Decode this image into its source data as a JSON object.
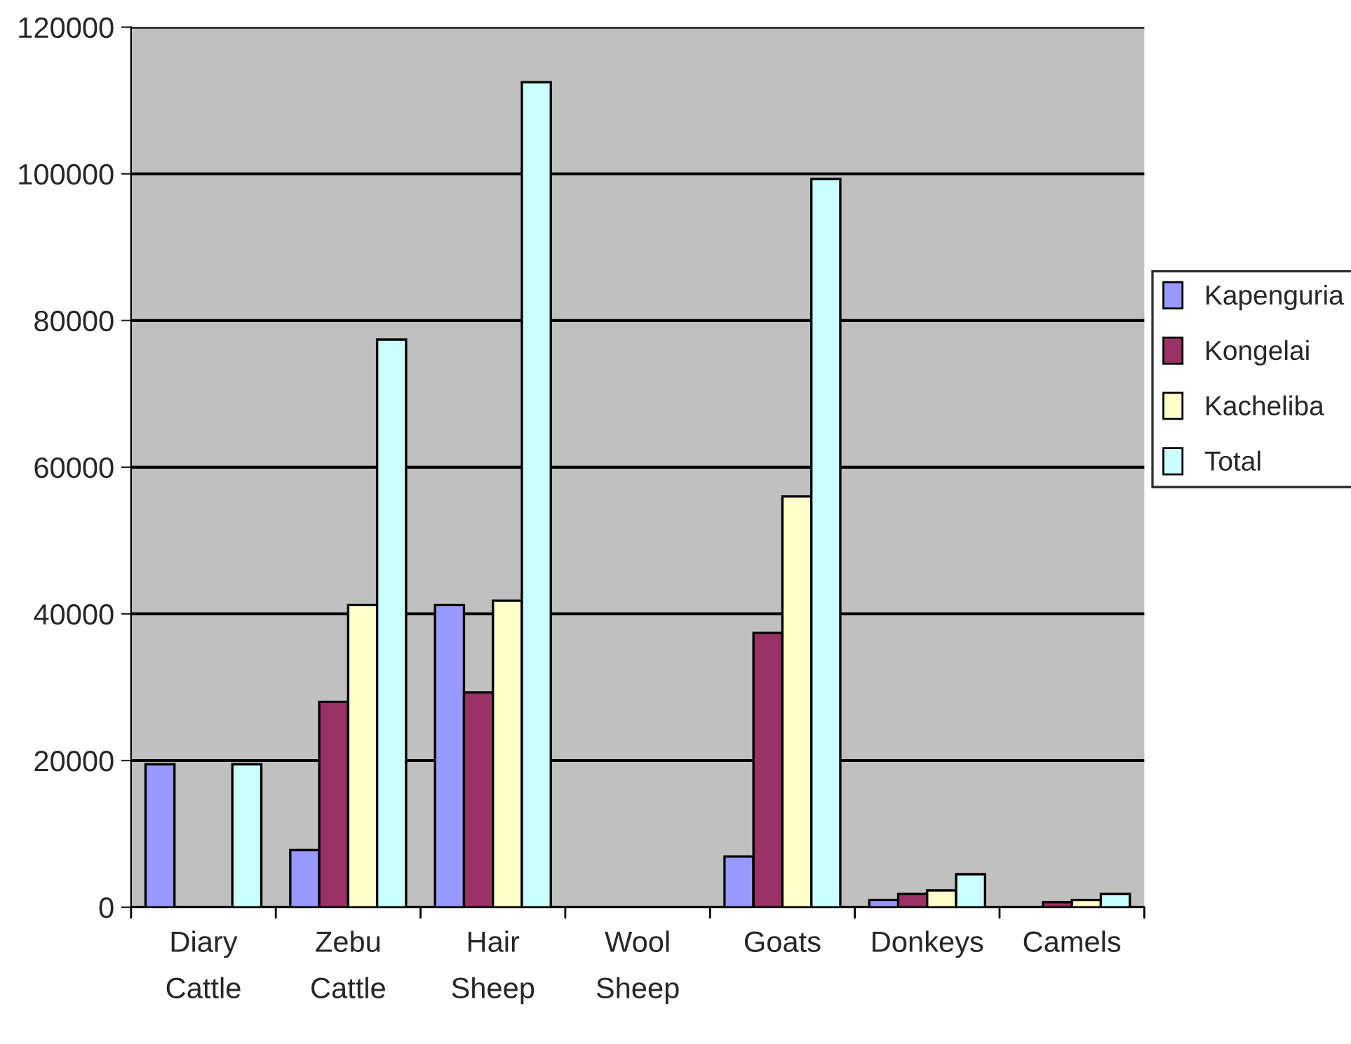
{
  "chart_data": {
    "type": "bar",
    "categories": [
      "Diary\nCattle",
      "Zebu\nCattle",
      "Hair\nSheep",
      "Wool\nSheep",
      "Goats",
      "Donkeys",
      "Camels"
    ],
    "series": [
      {
        "name": "Kapenguria",
        "color": "#9999ff",
        "values": [
          19500,
          7800,
          41200,
          null,
          6900,
          1000,
          null
        ]
      },
      {
        "name": "Kongelai",
        "color": "#993366",
        "values": [
          null,
          28000,
          29300,
          null,
          37400,
          1800,
          700
        ]
      },
      {
        "name": "Kacheliba",
        "color": "#ffffcc",
        "values": [
          null,
          41200,
          41800,
          null,
          56000,
          2300,
          1000
        ]
      },
      {
        "name": "Total",
        "color": "#ccffff",
        "values": [
          19500,
          77400,
          112500,
          null,
          99300,
          4500,
          1800
        ]
      }
    ],
    "ylim": [
      0,
      120000
    ],
    "yticks": [
      0,
      20000,
      40000,
      60000,
      80000,
      100000,
      120000
    ],
    "grid": "y",
    "legend": "right"
  }
}
